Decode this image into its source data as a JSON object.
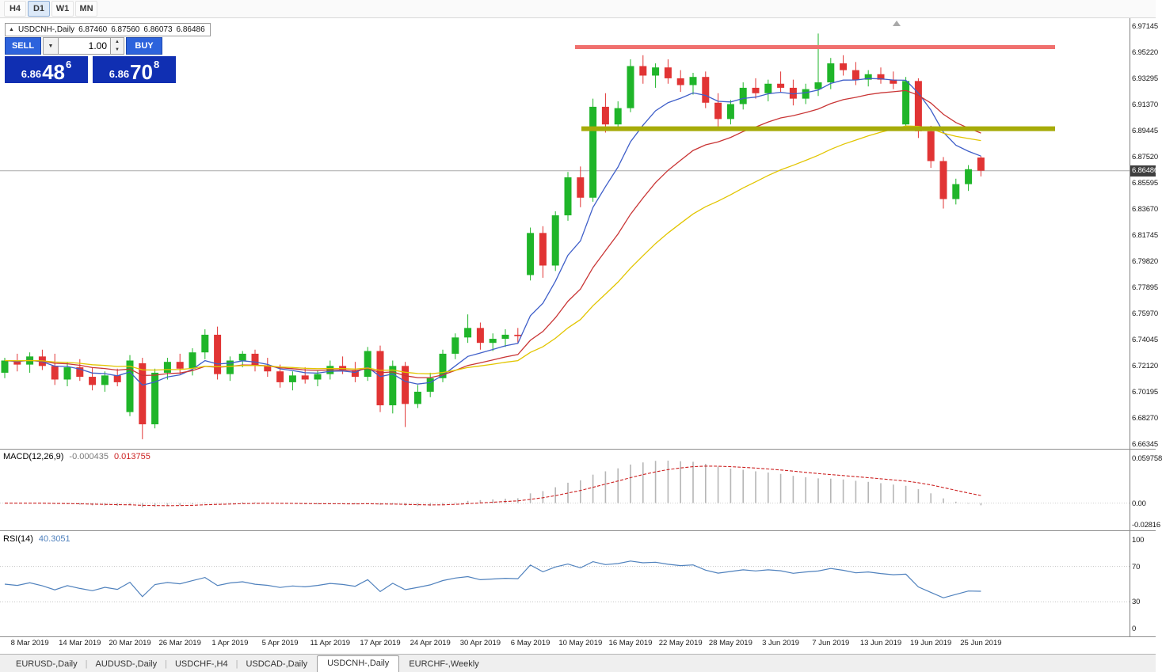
{
  "toolbar": {
    "timeframes": [
      {
        "label": "H4",
        "active": false
      },
      {
        "label": "D1",
        "active": true
      },
      {
        "label": "W1",
        "active": false
      },
      {
        "label": "MN",
        "active": false
      }
    ]
  },
  "quote_bar": {
    "collapse_icon": "▲",
    "symbol": "USDCNH-,Daily",
    "open": "6.87460",
    "high": "6.87560",
    "low": "6.86073",
    "close": "6.86486"
  },
  "trade_panel": {
    "sell_label": "SELL",
    "buy_label": "BUY",
    "volume": "1.00",
    "sell_price": {
      "prefix": "6.86",
      "digits": "48",
      "sup": "6"
    },
    "buy_price": {
      "prefix": "6.86",
      "digits": "70",
      "sup": "8"
    }
  },
  "price_axis": {
    "top_price": 6.97145,
    "price_step": 0.01925,
    "labels": [
      "6.97145",
      "6.95220",
      "6.93295",
      "6.91370",
      "6.89445",
      "6.87520",
      "6.85595",
      "6.83670",
      "6.81745",
      "6.79820",
      "6.77895",
      "6.75970",
      "6.74045",
      "6.72120",
      "6.70195",
      "6.68270",
      "6.66345"
    ],
    "current": "6.86486"
  },
  "chart_data": {
    "type": "candlestick",
    "symbol": "USDCNH-",
    "timeframe": "Daily",
    "ylim": [
      6.66345,
      6.97145
    ],
    "current_price": 6.86486,
    "candle_colors": {
      "bull": "#1fb529",
      "bear": "#e13434"
    },
    "ohlc_header": [
      "date",
      "open",
      "high",
      "low",
      "close"
    ],
    "candles": [
      [
        "2019-03-06",
        6.716,
        6.727,
        6.712,
        6.725
      ],
      [
        "2019-03-07",
        6.725,
        6.73,
        6.717,
        6.722
      ],
      [
        "2019-03-08",
        6.722,
        6.731,
        6.716,
        6.728
      ],
      [
        "2019-03-11",
        6.728,
        6.733,
        6.718,
        6.721
      ],
      [
        "2019-03-12",
        6.721,
        6.73,
        6.707,
        6.711
      ],
      [
        "2019-03-13",
        6.711,
        6.724,
        6.706,
        6.72
      ],
      [
        "2019-03-14",
        6.72,
        6.726,
        6.71,
        6.713
      ],
      [
        "2019-03-15",
        6.713,
        6.72,
        6.703,
        6.707
      ],
      [
        "2019-03-18",
        6.707,
        6.717,
        6.702,
        6.714
      ],
      [
        "2019-03-19",
        6.714,
        6.719,
        6.706,
        6.709
      ],
      [
        "2019-03-20",
        6.687,
        6.729,
        6.684,
        6.725
      ],
      [
        "2019-03-21",
        6.723,
        6.727,
        6.667,
        6.678
      ],
      [
        "2019-03-22",
        6.678,
        6.719,
        6.675,
        6.716
      ],
      [
        "2019-03-25",
        6.716,
        6.727,
        6.711,
        6.724
      ],
      [
        "2019-03-26",
        6.724,
        6.73,
        6.715,
        6.719
      ],
      [
        "2019-03-27",
        6.719,
        6.734,
        6.714,
        6.731
      ],
      [
        "2019-03-28",
        6.731,
        6.748,
        6.726,
        6.744
      ],
      [
        "2019-03-29",
        6.744,
        6.75,
        6.711,
        6.715
      ],
      [
        "2019-04-01",
        6.715,
        6.728,
        6.71,
        6.725
      ],
      [
        "2019-04-02",
        6.725,
        6.732,
        6.72,
        6.73
      ],
      [
        "2019-04-03",
        6.73,
        6.733,
        6.717,
        6.721
      ],
      [
        "2019-04-04",
        6.721,
        6.727,
        6.713,
        6.717
      ],
      [
        "2019-04-05",
        6.717,
        6.722,
        6.705,
        6.709
      ],
      [
        "2019-04-08",
        6.709,
        6.717,
        6.703,
        6.714
      ],
      [
        "2019-04-09",
        6.714,
        6.72,
        6.708,
        6.711
      ],
      [
        "2019-04-10",
        6.711,
        6.718,
        6.706,
        6.715
      ],
      [
        "2019-04-11",
        6.715,
        6.725,
        6.711,
        6.721
      ],
      [
        "2019-04-12",
        6.721,
        6.728,
        6.715,
        6.718
      ],
      [
        "2019-04-15",
        6.718,
        6.724,
        6.709,
        6.713
      ],
      [
        "2019-04-16",
        6.713,
        6.735,
        6.71,
        6.732
      ],
      [
        "2019-04-17",
        6.732,
        6.736,
        6.687,
        6.692
      ],
      [
        "2019-04-18",
        6.692,
        6.725,
        6.686,
        6.721
      ],
      [
        "2019-04-22",
        6.721,
        6.724,
        6.676,
        6.693
      ],
      [
        "2019-04-23",
        6.693,
        6.707,
        6.69,
        6.702
      ],
      [
        "2019-04-24",
        6.702,
        6.716,
        6.698,
        6.712
      ],
      [
        "2019-04-25",
        6.712,
        6.733,
        6.709,
        6.73
      ],
      [
        "2019-04-26",
        6.73,
        6.745,
        6.726,
        6.742
      ],
      [
        "2019-04-29",
        6.742,
        6.759,
        6.738,
        6.749
      ],
      [
        "2019-04-30",
        6.749,
        6.753,
        6.733,
        6.738
      ],
      [
        "2019-05-01",
        6.738,
        6.745,
        6.732,
        6.741
      ],
      [
        "2019-05-02",
        6.741,
        6.748,
        6.735,
        6.744
      ],
      [
        "2019-05-03",
        6.744,
        6.749,
        6.738,
        6.743
      ],
      [
        "2019-05-06",
        6.788,
        6.823,
        6.784,
        6.819
      ],
      [
        "2019-05-07",
        6.819,
        6.824,
        6.786,
        6.795
      ],
      [
        "2019-05-08",
        6.795,
        6.835,
        6.791,
        6.832
      ],
      [
        "2019-05-09",
        6.832,
        6.864,
        6.828,
        6.86
      ],
      [
        "2019-05-10",
        6.86,
        6.868,
        6.838,
        6.845
      ],
      [
        "2019-05-13",
        6.845,
        6.918,
        6.842,
        6.912
      ],
      [
        "2019-05-14",
        6.912,
        6.922,
        6.893,
        6.899
      ],
      [
        "2019-05-15",
        6.899,
        6.916,
        6.895,
        6.911
      ],
      [
        "2019-05-16",
        6.911,
        6.947,
        6.908,
        6.942
      ],
      [
        "2019-05-17",
        6.942,
        6.95,
        6.929,
        6.935
      ],
      [
        "2019-05-20",
        6.935,
        6.944,
        6.926,
        6.941
      ],
      [
        "2019-05-21",
        6.941,
        6.947,
        6.929,
        6.933
      ],
      [
        "2019-05-22",
        6.933,
        6.939,
        6.923,
        6.928
      ],
      [
        "2019-05-23",
        6.928,
        6.937,
        6.921,
        6.934
      ],
      [
        "2019-05-24",
        6.934,
        6.938,
        6.911,
        6.915
      ],
      [
        "2019-05-27",
        6.915,
        6.922,
        6.897,
        6.903
      ],
      [
        "2019-05-28",
        6.903,
        6.917,
        6.899,
        6.914
      ],
      [
        "2019-05-29",
        6.914,
        6.93,
        6.91,
        6.926
      ],
      [
        "2019-05-30",
        6.926,
        6.933,
        6.918,
        6.922
      ],
      [
        "2019-05-31",
        6.922,
        6.932,
        6.916,
        6.929
      ],
      [
        "2019-06-03",
        6.929,
        6.938,
        6.923,
        6.926
      ],
      [
        "2019-06-04",
        6.926,
        6.932,
        6.913,
        6.918
      ],
      [
        "2019-06-05",
        6.918,
        6.929,
        6.914,
        6.925
      ],
      [
        "2019-06-06",
        6.925,
        6.966,
        6.92,
        6.93
      ],
      [
        "2019-06-07",
        6.93,
        6.948,
        6.925,
        6.944
      ],
      [
        "2019-06-10",
        6.944,
        6.95,
        6.935,
        6.939
      ],
      [
        "2019-06-11",
        6.939,
        6.945,
        6.928,
        6.932
      ],
      [
        "2019-06-12",
        6.932,
        6.939,
        6.927,
        6.936
      ],
      [
        "2019-06-13",
        6.936,
        6.941,
        6.929,
        6.932
      ],
      [
        "2019-06-14",
        6.932,
        6.938,
        6.925,
        6.929
      ],
      [
        "2019-06-17",
        6.899,
        6.934,
        6.895,
        6.931
      ],
      [
        "2019-06-18",
        6.931,
        6.933,
        6.889,
        6.894
      ],
      [
        "2019-06-19",
        6.894,
        6.898,
        6.867,
        6.872
      ],
      [
        "2019-06-20",
        6.872,
        6.875,
        6.837,
        6.844
      ],
      [
        "2019-06-21",
        6.844,
        6.859,
        6.84,
        6.855
      ],
      [
        "2019-06-24",
        6.855,
        6.869,
        6.85,
        6.866
      ],
      [
        "2019-06-25",
        6.8746,
        6.8756,
        6.8607,
        6.8649
      ]
    ],
    "moving_averages": [
      {
        "name": "ma-fast",
        "period": 7,
        "color": "#3f5fc9"
      },
      {
        "name": "ma-medium",
        "period": 16,
        "color": "#c93535"
      },
      {
        "name": "ma-slow",
        "period": 30,
        "color": "#e2c500"
      }
    ],
    "horizontal_lines": [
      {
        "name": "resistance-line",
        "price": 6.956,
        "color": "#f0706e",
        "thickness": 5,
        "x_start": 726,
        "x_end": 1332
      },
      {
        "name": "support-line",
        "price": 6.8958,
        "color": "#a6ab08",
        "thickness": 6,
        "x_start": 734,
        "x_end": 1332
      }
    ]
  },
  "macd": {
    "title": "MACD(12,26,9)",
    "value_main": "-0.000435",
    "value_signal": "0.013755",
    "params": {
      "fast": 12,
      "slow": 26,
      "signal": 9
    },
    "axis_labels": [
      "0.059758",
      "0.00",
      "-0.02816"
    ],
    "axis_values": [
      0.059758,
      0,
      -0.02816
    ],
    "range": [
      -0.0318,
      0.0688
    ],
    "histogram_color": "#b6b6b6",
    "signal_color": "#cc2222"
  },
  "rsi": {
    "title": "RSI(14)",
    "value": "40.3051",
    "period": 14,
    "axis_labels": [
      "100",
      "70",
      "30",
      "0"
    ],
    "axis_values": [
      100,
      70,
      30,
      0
    ],
    "levels": [
      70,
      30
    ],
    "line_color": "#4f81bd"
  },
  "x_axis": {
    "labels": [
      {
        "text": "8 Mar 2019",
        "index": 2
      },
      {
        "text": "14 Mar 2019",
        "index": 6
      },
      {
        "text": "20 Mar 2019",
        "index": 10
      },
      {
        "text": "26 Mar 2019",
        "index": 14
      },
      {
        "text": "1 Apr 2019",
        "index": 18
      },
      {
        "text": "5 Apr 2019",
        "index": 22
      },
      {
        "text": "11 Apr 2019",
        "index": 26
      },
      {
        "text": "17 Apr 2019",
        "index": 30
      },
      {
        "text": "24 Apr 2019",
        "index": 34
      },
      {
        "text": "30 Apr 2019",
        "index": 38
      },
      {
        "text": "6 May 2019",
        "index": 42
      },
      {
        "text": "10 May 2019",
        "index": 46
      },
      {
        "text": "16 May 2019",
        "index": 50
      },
      {
        "text": "22 May 2019",
        "index": 54
      },
      {
        "text": "28 May 2019",
        "index": 58
      },
      {
        "text": "3 Jun 2019",
        "index": 62
      },
      {
        "text": "7 Jun 2019",
        "index": 66
      },
      {
        "text": "13 Jun 2019",
        "index": 70
      },
      {
        "text": "19 Jun 2019",
        "index": 74
      },
      {
        "text": "25 Jun 2019",
        "index": 78
      }
    ]
  },
  "tabs": [
    {
      "label": "EURUSD-,Daily",
      "active": false
    },
    {
      "label": "AUDUSD-,Daily",
      "active": false
    },
    {
      "label": "USDCHF-,H4",
      "active": false
    },
    {
      "label": "USDCAD-,Daily",
      "active": false
    },
    {
      "label": "USDCNH-,Daily",
      "active": true
    },
    {
      "label": "EURCHF-,Weekly",
      "active": false
    }
  ]
}
